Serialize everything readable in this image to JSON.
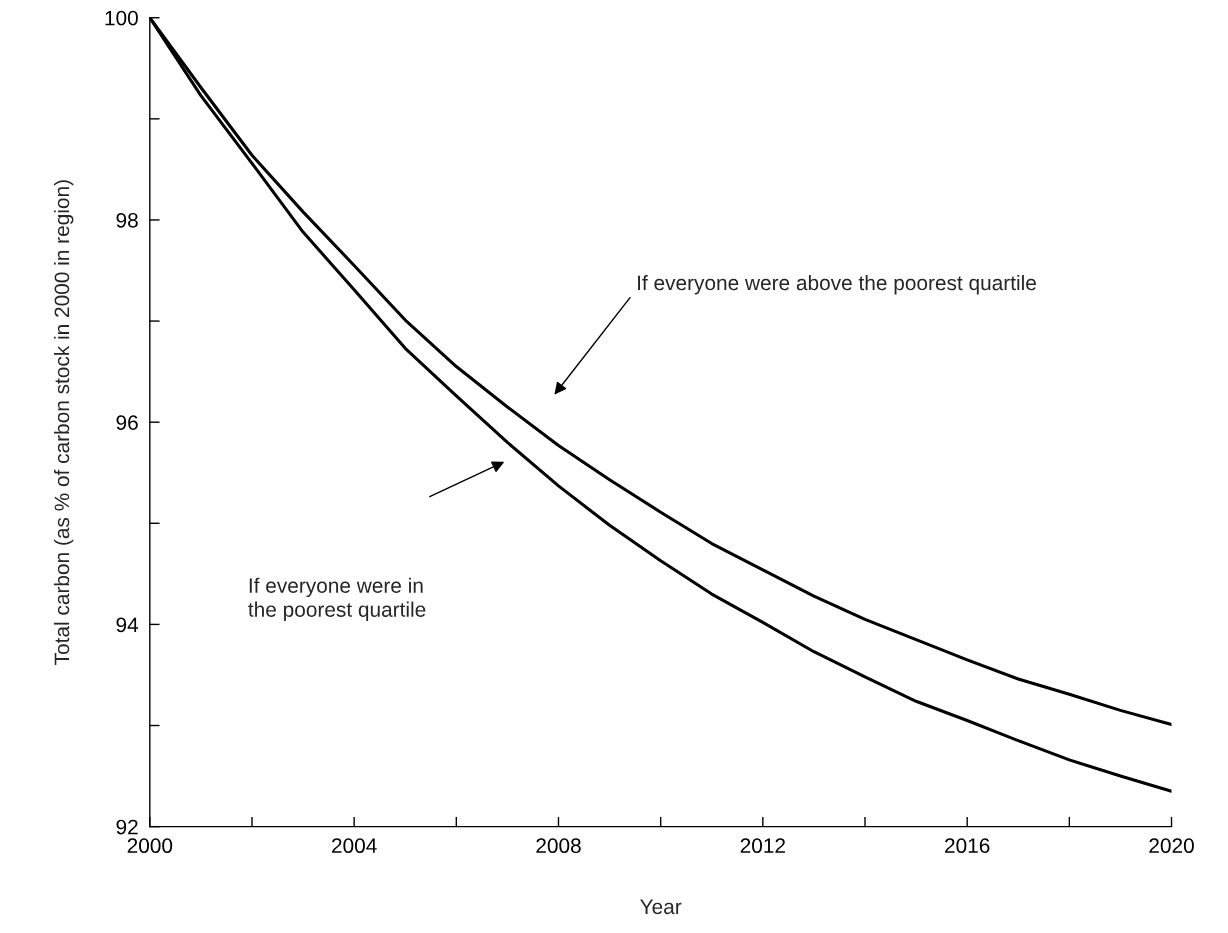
{
  "chart_data": {
    "type": "line",
    "xlabel": "Year",
    "ylabel": "Total carbon (as % of carbon stock in 2000 in region)",
    "x": [
      2000,
      2001,
      2002,
      2003,
      2004,
      2005,
      2006,
      2007,
      2008,
      2009,
      2010,
      2011,
      2012,
      2013,
      2014,
      2015,
      2016,
      2017,
      2018,
      2019,
      2020
    ],
    "series": [
      {
        "color": "#000000",
        "values": [
          100,
          99.31,
          98.64,
          98.08,
          97.55,
          97.01,
          96.55,
          96.15,
          95.77,
          95.43,
          95.11,
          94.8,
          94.54,
          94.28,
          94.05,
          93.85,
          93.65,
          93.46,
          93.31,
          93.15,
          93.01
        ]
      },
      {
        "color": "#000000",
        "values": [
          100,
          99.23,
          98.56,
          97.88,
          97.31,
          96.73,
          96.26,
          95.8,
          95.37,
          94.98,
          94.63,
          94.3,
          94.02,
          93.73,
          93.48,
          93.24,
          93.05,
          92.85,
          92.66,
          92.5,
          92.35
        ]
      }
    ],
    "xlim": [
      2000,
      2020
    ],
    "ylim": [
      92,
      100
    ],
    "xticks": [
      2000,
      {
        "value": 2002,
        "label": null
      },
      2004,
      {
        "value": 2006,
        "label": null
      },
      2008,
      {
        "value": 2010,
        "label": null
      },
      2012,
      {
        "value": 2014,
        "label": null
      },
      2016,
      {
        "value": 2018,
        "label": null
      },
      2020
    ],
    "yticks": [
      92,
      {
        "value": 93,
        "label": null
      },
      94,
      {
        "value": 95,
        "label": null
      },
      96,
      {
        "value": 97,
        "label": null
      },
      98,
      {
        "value": 99,
        "label": null
      },
      100
    ],
    "annotations": [
      "If everyone were above the poorest quartile",
      "If everyone were in\nthe poorest quartile"
    ],
    "grid": false,
    "legend": false,
    "marker": "none",
    "line_style": "solid"
  }
}
